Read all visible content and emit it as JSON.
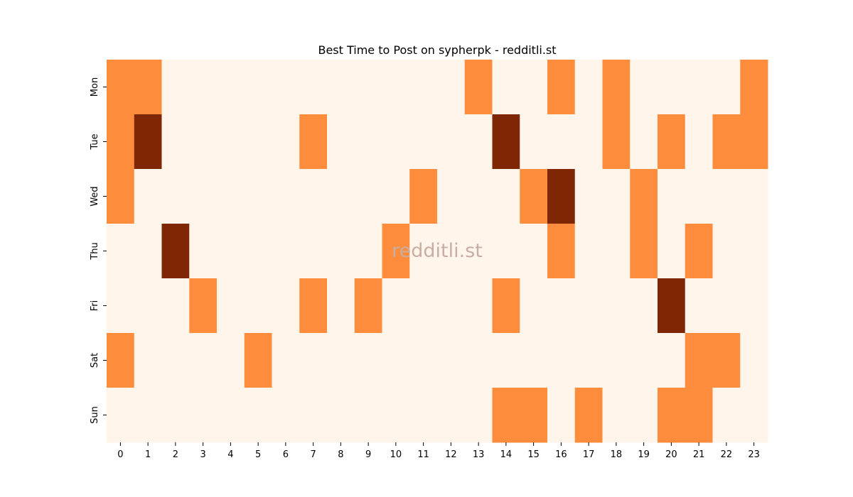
{
  "chart_data": {
    "type": "heatmap",
    "title": "Best Time to Post on sypherpk - redditli.st",
    "watermark": "redditli.st",
    "x_labels": [
      "0",
      "1",
      "2",
      "3",
      "4",
      "5",
      "6",
      "7",
      "8",
      "9",
      "10",
      "11",
      "12",
      "13",
      "14",
      "15",
      "16",
      "17",
      "18",
      "19",
      "20",
      "21",
      "22",
      "23"
    ],
    "y_labels": [
      "Mon",
      "Tue",
      "Wed",
      "Thu",
      "Fri",
      "Sat",
      "Sun"
    ],
    "values": [
      [
        1,
        1,
        0,
        0,
        0,
        0,
        0,
        0,
        0,
        0,
        0,
        0,
        0,
        1,
        0,
        0,
        1,
        0,
        1,
        0,
        0,
        0,
        0,
        1
      ],
      [
        1,
        2,
        0,
        0,
        0,
        0,
        0,
        1,
        0,
        0,
        0,
        0,
        0,
        0,
        2,
        0,
        0,
        0,
        1,
        0,
        1,
        0,
        1,
        1
      ],
      [
        1,
        0,
        0,
        0,
        0,
        0,
        0,
        0,
        0,
        0,
        0,
        1,
        0,
        0,
        0,
        1,
        2,
        0,
        0,
        1,
        0,
        0,
        0,
        0
      ],
      [
        0,
        0,
        2,
        0,
        0,
        0,
        0,
        0,
        0,
        0,
        1,
        0,
        0,
        0,
        0,
        0,
        1,
        0,
        0,
        1,
        0,
        1,
        0,
        0
      ],
      [
        0,
        0,
        0,
        1,
        0,
        0,
        0,
        1,
        0,
        1,
        0,
        0,
        0,
        0,
        1,
        0,
        0,
        0,
        0,
        0,
        2,
        0,
        0,
        0
      ],
      [
        1,
        0,
        0,
        0,
        0,
        1,
        0,
        0,
        0,
        0,
        0,
        0,
        0,
        0,
        0,
        0,
        0,
        0,
        0,
        0,
        0,
        1,
        1,
        0
      ],
      [
        0,
        0,
        0,
        0,
        0,
        0,
        0,
        0,
        0,
        0,
        0,
        0,
        0,
        0,
        1,
        1,
        0,
        1,
        0,
        0,
        1,
        1,
        0,
        0
      ]
    ],
    "color_scale": [
      "#fff5eb",
      "#fd8d3c",
      "#7f2704"
    ],
    "legend": "none"
  }
}
